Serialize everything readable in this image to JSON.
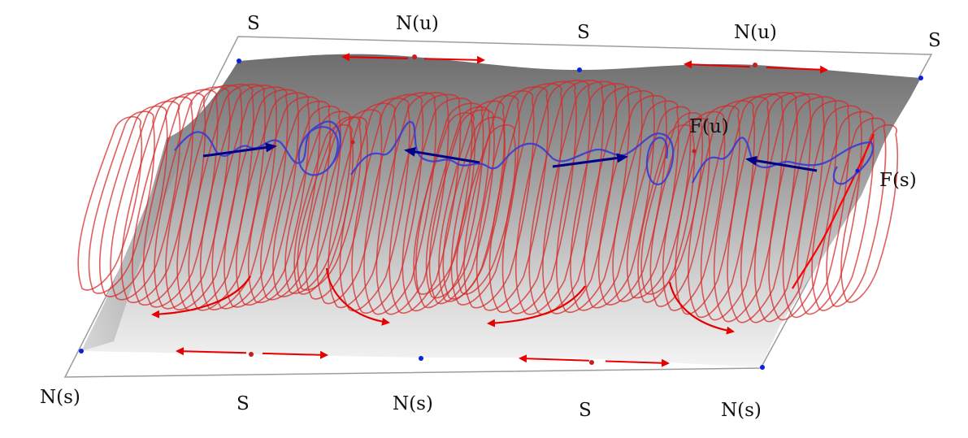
{
  "colors": {
    "surface_dark": "#7a7a7a",
    "surface_light": "#f2f2f2",
    "trajectory_red": "#d62a2a",
    "trajectory_blue": "#3a3ad0",
    "arrow_red": "#e60000",
    "arrow_blue": "#00008b",
    "point_blue": "#0a20e0",
    "point_red": "#c81e1e",
    "frame": "#999999"
  },
  "labels": {
    "top_s_1": "S",
    "top_nu_1": "N(u)",
    "top_s_2": "S",
    "top_nu_2": "N(u)",
    "top_s_3": "S",
    "right_fu": "F(u)",
    "right_fs": "F(s)",
    "bottom_ns_1": "N(s)",
    "bottom_s_1": "S",
    "bottom_ns_2": "N(s)",
    "bottom_s_2": "S",
    "bottom_ns_3": "N(s)"
  },
  "icons": {
    "red_arrow": "double-headed-arrow",
    "blue_arrow": "single-arrow",
    "curved_arrow": "curved-arrow"
  }
}
